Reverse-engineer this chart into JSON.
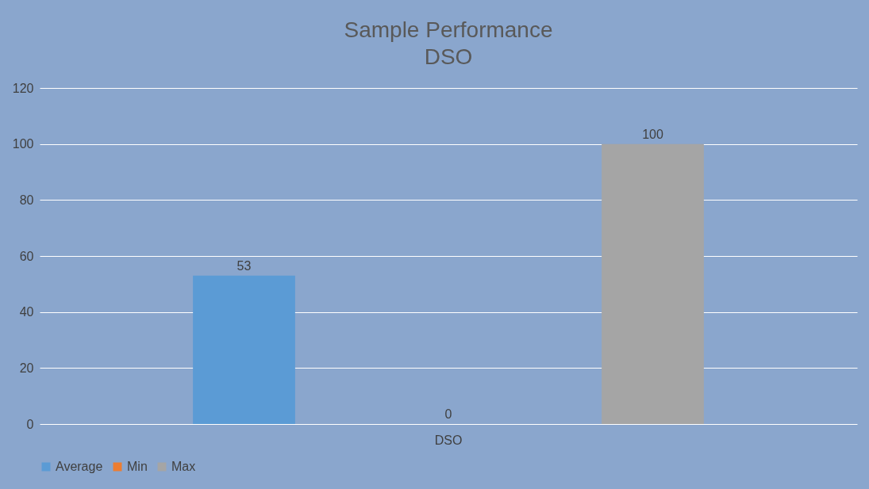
{
  "chart_data": {
    "type": "bar",
    "title": "Sample Performance\nDSO",
    "categories": [
      "DSO"
    ],
    "series": [
      {
        "name": "Average",
        "color": "#5b9bd5",
        "values": [
          53
        ]
      },
      {
        "name": "Min",
        "color": "#ed7d31",
        "values": [
          0
        ]
      },
      {
        "name": "Max",
        "color": "#a5a5a5",
        "values": [
          100
        ]
      }
    ],
    "ylim": [
      0,
      120
    ],
    "yticks": [
      0,
      20,
      40,
      60,
      80,
      100,
      120
    ],
    "grid": "y",
    "legend": "bottom",
    "data_labels": true
  }
}
